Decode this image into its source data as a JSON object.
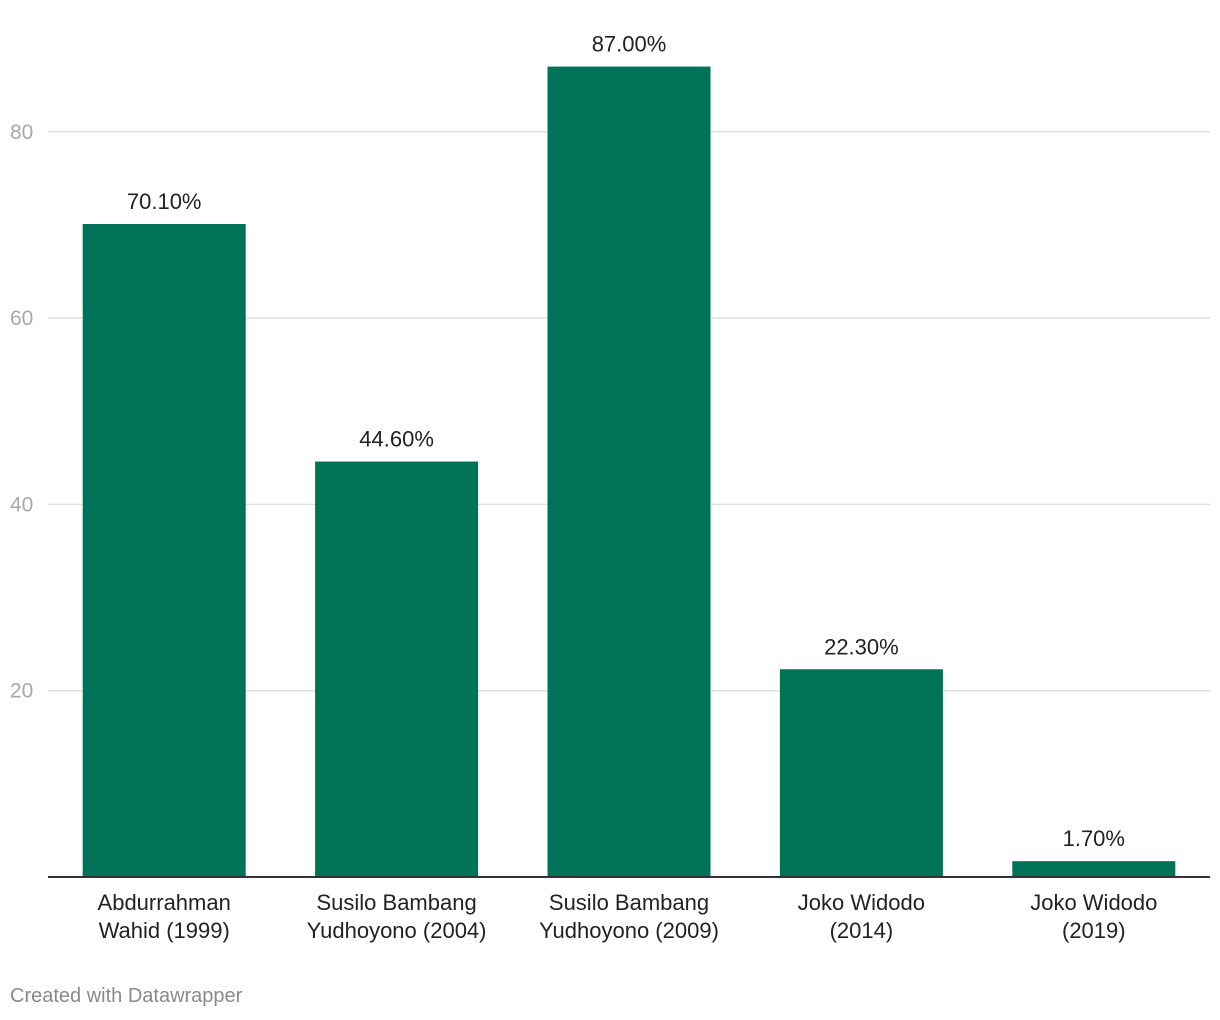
{
  "chart_data": {
    "type": "bar",
    "categories": [
      [
        "Abdurrahman",
        "Wahid (1999)"
      ],
      [
        "Susilo Bambang",
        "Yudhoyono (2004)"
      ],
      [
        "Susilo Bambang",
        "Yudhoyono (2009)"
      ],
      [
        "Joko Widodo",
        "(2014)"
      ],
      [
        "Joko Widodo",
        "(2019)"
      ]
    ],
    "values": [
      70.1,
      44.6,
      87.0,
      22.3,
      1.7
    ],
    "value_labels": [
      "70.10%",
      "44.60%",
      "87.00%",
      "22.30%",
      "1.70%"
    ],
    "ylim": [
      0,
      92
    ],
    "yticks": [
      20,
      40,
      60,
      80
    ],
    "grid": true,
    "title": "",
    "xlabel": "",
    "ylabel": "",
    "colors": {
      "bar": "#007257",
      "grid": "#e0e0e0",
      "axis": "#333333",
      "tick_label": "#a8a8a8",
      "text": "#222222"
    }
  },
  "footer": {
    "credit": "Created with Datawrapper"
  }
}
